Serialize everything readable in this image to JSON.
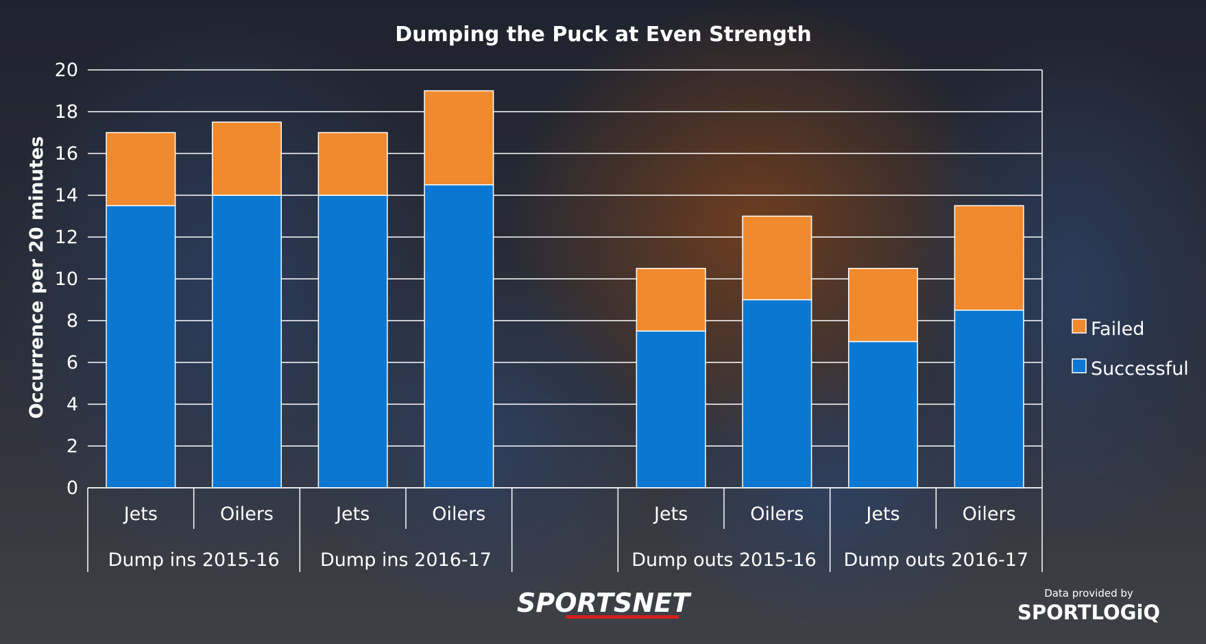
{
  "chart_data": {
    "type": "bar",
    "stacked": true,
    "title": "Dumping the Puck at Even Strength",
    "ylabel": "Occurrence per 20 minutes",
    "xlabel": "",
    "ylim": [
      0,
      20
    ],
    "yticks": [
      0,
      2,
      4,
      6,
      8,
      10,
      12,
      14,
      16,
      18,
      20
    ],
    "grid": true,
    "legend_position": "right",
    "groups": [
      {
        "label": "Dump ins 2015-16",
        "categories": [
          "Jets",
          "Oilers"
        ]
      },
      {
        "label": "Dump ins 2016-17",
        "categories": [
          "Jets",
          "Oilers"
        ]
      },
      {
        "label": "Dump outs 2015-16",
        "categories": [
          "Jets",
          "Oilers"
        ]
      },
      {
        "label": "Dump outs 2016-17",
        "categories": [
          "Jets",
          "Oilers"
        ]
      }
    ],
    "categories": [
      "Jets",
      "Oilers",
      "Jets",
      "Oilers",
      "Jets",
      "Oilers",
      "Jets",
      "Oilers"
    ],
    "series": [
      {
        "name": "Successful",
        "color": "#0a78d2",
        "values": [
          13.5,
          14,
          14,
          14.5,
          7.5,
          9,
          7,
          8.5
        ]
      },
      {
        "name": "Failed",
        "color": "#f08a2e",
        "values": [
          3.5,
          3.5,
          3,
          4.5,
          3,
          4,
          3.5,
          5
        ]
      }
    ]
  },
  "branding": {
    "publisher": "SPORTSNET",
    "credit_line": "Data provided by",
    "data_source": "SPORTLOGiQ"
  }
}
